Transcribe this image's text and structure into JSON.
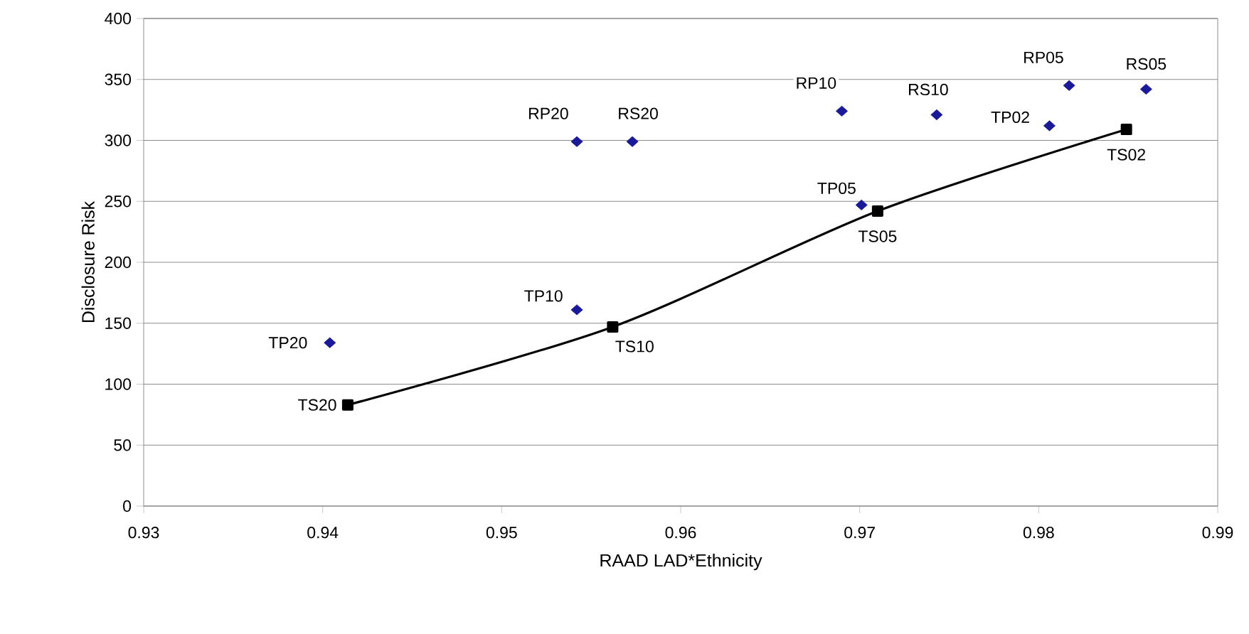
{
  "chart_data": {
    "type": "scatter",
    "xlabel": "RAAD LAD*Ethnicity",
    "ylabel": "Disclosure Risk",
    "xlim": [
      0.93,
      0.99
    ],
    "xticks": [
      0.93,
      0.94,
      0.95,
      0.96,
      0.97,
      0.98,
      0.99
    ],
    "ylim": [
      0,
      400
    ],
    "yticks": [
      0,
      50,
      100,
      150,
      200,
      250,
      300,
      350,
      400
    ],
    "grid": "y",
    "series": [
      {
        "color": "#1a1a99",
        "marker": "diamond",
        "x": [
          0.9404,
          0.9542,
          0.9542,
          0.9573,
          0.969,
          0.9743,
          0.9806,
          0.9817,
          0.986,
          0.9701
        ],
        "values": [
          134,
          161,
          299,
          299,
          324,
          321,
          312,
          345,
          342,
          247
        ]
      },
      {
        "type": "line",
        "color": "#000000",
        "marker": "square",
        "line_style": "solid",
        "x": [
          0.9414,
          0.9562,
          0.971,
          0.9849
        ],
        "values": [
          83,
          147,
          242,
          309
        ]
      }
    ],
    "annotations": [
      {
        "text": "TP20",
        "x": 0.9404,
        "y": 134
      },
      {
        "text": "TS20",
        "x": 0.9414,
        "y": 83
      },
      {
        "text": "TP10",
        "x": 0.9542,
        "y": 161
      },
      {
        "text": "TS10",
        "x": 0.9562,
        "y": 147
      },
      {
        "text": "RP20",
        "x": 0.9542,
        "y": 299
      },
      {
        "text": "RS20",
        "x": 0.9573,
        "y": 299
      },
      {
        "text": "RP10",
        "x": 0.969,
        "y": 324
      },
      {
        "text": "RS10",
        "x": 0.9743,
        "y": 321
      },
      {
        "text": "TP02",
        "x": 0.9806,
        "y": 312
      },
      {
        "text": "RP05",
        "x": 0.9817,
        "y": 345
      },
      {
        "text": "RS05",
        "x": 0.986,
        "y": 342
      },
      {
        "text": "TS02",
        "x": 0.9849,
        "y": 309
      },
      {
        "text": "TP05",
        "x": 0.9701,
        "y": 247
      },
      {
        "text": "TS05",
        "x": 0.971,
        "y": 242
      }
    ]
  }
}
